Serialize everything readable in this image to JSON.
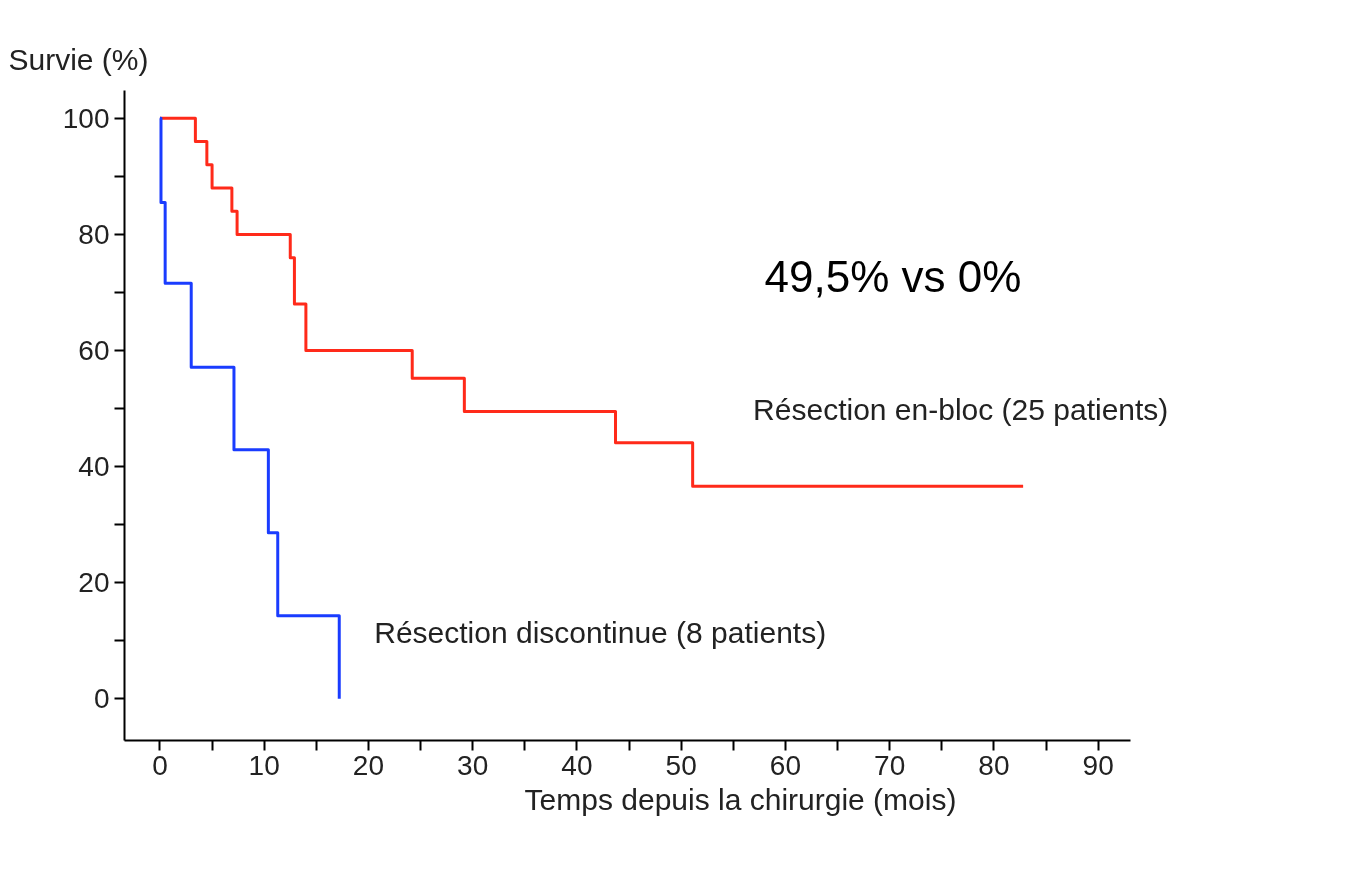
{
  "chart_data": {
    "type": "step",
    "ylabel": "Survie (%)",
    "xlabel": "Temps depuis la chirurgie (mois)",
    "xlim": [
      -3.4,
      93.1
    ],
    "ylim": [
      -7.2,
      104.8
    ],
    "xticks": [
      0,
      {
        "value": 5,
        "label": null
      },
      10,
      {
        "value": 15,
        "label": null
      },
      20,
      {
        "value": 25,
        "label": null
      },
      30,
      {
        "value": 35,
        "label": null
      },
      40,
      {
        "value": 45,
        "label": null
      },
      50,
      {
        "value": 55,
        "label": null
      },
      60,
      {
        "value": 65,
        "label": null
      },
      70,
      {
        "value": 75,
        "label": null
      },
      80,
      {
        "value": 85,
        "label": null
      },
      90
    ],
    "yticks": [
      0,
      {
        "value": 10,
        "label": null
      },
      20,
      {
        "value": 30,
        "label": null
      },
      40,
      {
        "value": 50,
        "label": null
      },
      60,
      {
        "value": 70,
        "label": null
      },
      80,
      {
        "value": 90,
        "label": null
      },
      100
    ],
    "grid": false,
    "marker": "none",
    "line_style": "solid",
    "annotations": [
      "49,5% vs 0%"
    ],
    "series": [
      {
        "name": "Résection en-bloc (25 patients)",
        "color": "#ff2a1a",
        "x": [
          0,
          3.4,
          4.5,
          5.0,
          6.9,
          7.4,
          12.5,
          12.9,
          14.0,
          24.2,
          29.2,
          43.7,
          51.1,
          82.8
        ],
        "values": [
          100,
          96,
          92,
          88,
          84,
          80,
          76,
          68,
          60,
          55.2,
          49.5,
          44.1,
          36.6,
          36.6
        ]
      },
      {
        "name": "Résection discontinue (8 patients)",
        "color": "#1a3cff",
        "x": [
          0,
          0.1,
          0.5,
          3.0,
          7.1,
          10.4,
          11.3,
          17.2
        ],
        "values": [
          100,
          85.5,
          71.6,
          57.1,
          42.9,
          28.6,
          14.3,
          0
        ]
      }
    ]
  }
}
